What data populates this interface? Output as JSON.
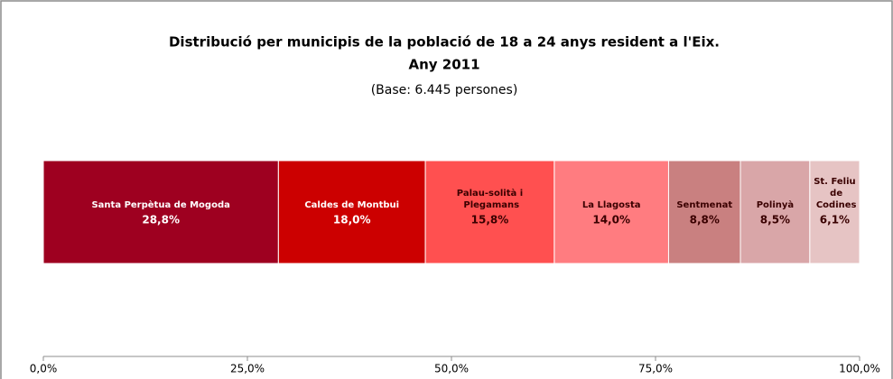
{
  "chart_data": {
    "type": "stacked-bar-horizontal",
    "title": [
      "Distribució per municipis de la població de 18 a 24 anys resident a l'Eix.",
      "Any 2011"
    ],
    "subtitle": "(Base: 6.445 persones)",
    "series": [
      {
        "name": "Santa Perpètua de Mogoda",
        "color": "#9e0020",
        "label_color": "#ffffff",
        "values": [
          28.8
        ],
        "value_labels": [
          "28,8%"
        ]
      },
      {
        "name": "Caldes de Montbui",
        "color": "#cc0000",
        "label_color": "#ffffff",
        "values": [
          18.0
        ],
        "value_labels": [
          "18,0%"
        ]
      },
      {
        "name": "Palau-solità i Plegamans",
        "color": "#ff5050",
        "label_color": "#3a0000",
        "values": [
          15.8
        ],
        "value_labels": [
          "15,8%"
        ]
      },
      {
        "name": "La Llagosta",
        "color": "#ff7c80",
        "label_color": "#3a0000",
        "values": [
          14.0
        ],
        "value_labels": [
          "14,0%"
        ]
      },
      {
        "name": "Sentmenat",
        "color": "#c98080",
        "label_color": "#3a0000",
        "values": [
          8.8
        ],
        "value_labels": [
          "8,8%"
        ]
      },
      {
        "name": "Polinyà",
        "color": "#d9a6a8",
        "label_color": "#3a0000",
        "values": [
          8.5
        ],
        "value_labels": [
          "8,5%"
        ]
      },
      {
        "name": "St. Feliu de Codines",
        "color": "#e6c4c4",
        "label_color": "#3a0000",
        "values": [
          6.1
        ],
        "value_labels": [
          "6,1%"
        ]
      }
    ],
    "xlim": [
      0,
      100
    ],
    "xticks": [
      {
        "value": 0,
        "label": "0,0%"
      },
      {
        "value": 25,
        "label": "25,0%"
      },
      {
        "value": 50,
        "label": "50,0%"
      },
      {
        "value": 75,
        "label": "75,0%"
      },
      {
        "value": 100,
        "label": "100,0%"
      }
    ]
  }
}
